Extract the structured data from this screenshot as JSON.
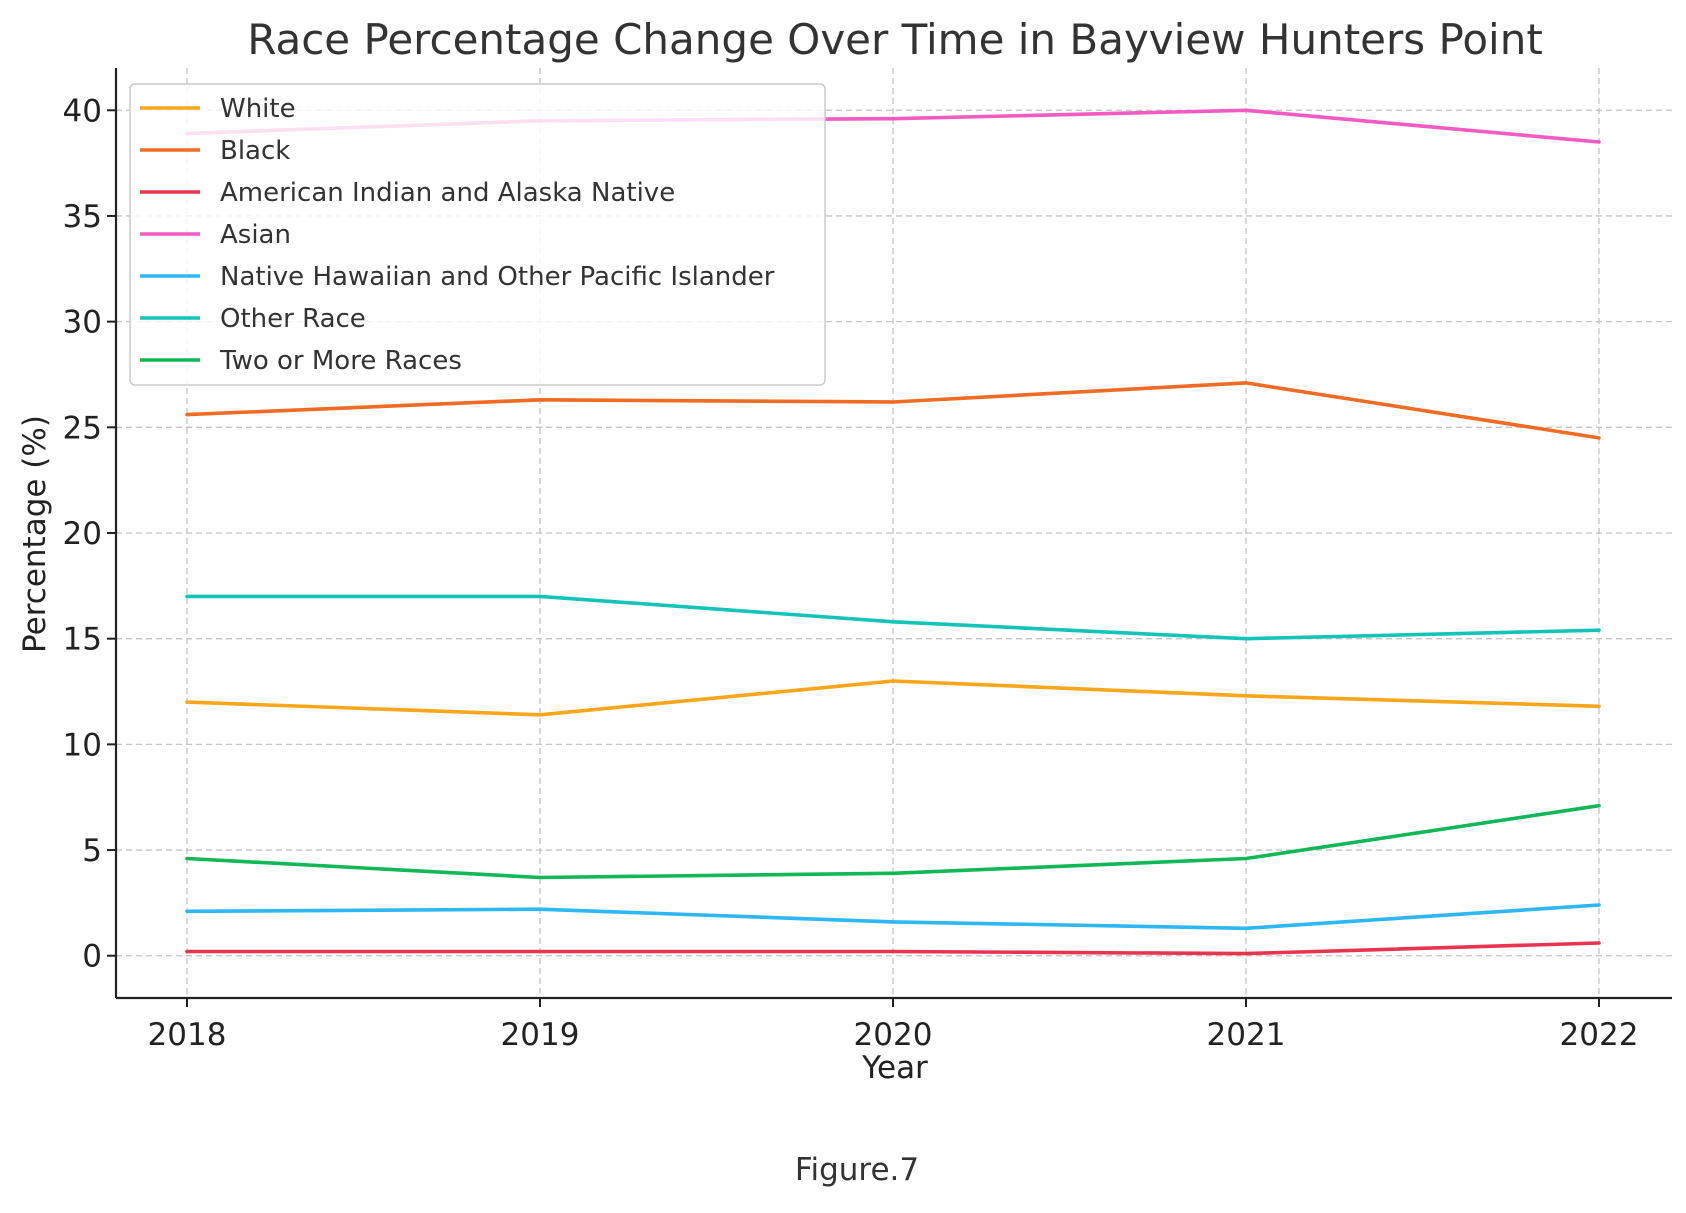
{
  "chart_data": {
    "type": "line",
    "title": "Race Percentage Change Over Time in Bayview Hunters Point",
    "xlabel": "Year",
    "ylabel": "Percentage (%)",
    "categories": [
      "2018",
      "2019",
      "2020",
      "2021",
      "2022"
    ],
    "ylim": [
      -2,
      42
    ],
    "yticks": [
      0,
      5,
      10,
      15,
      20,
      25,
      30,
      35,
      40
    ],
    "grid": true,
    "legend_position": "top-left",
    "series": [
      {
        "name": "White",
        "color": "#FAA61A",
        "values": [
          12.0,
          11.4,
          13.0,
          12.3,
          11.8
        ]
      },
      {
        "name": "Black",
        "color": "#F06B23",
        "values": [
          25.6,
          26.3,
          26.2,
          27.1,
          24.5
        ]
      },
      {
        "name": "American Indian and Alaska Native",
        "color": "#E8344E",
        "values": [
          0.2,
          0.2,
          0.2,
          0.1,
          0.6
        ]
      },
      {
        "name": "Asian",
        "color": "#F25AC4",
        "values": [
          38.9,
          39.5,
          39.6,
          40.0,
          38.5
        ]
      },
      {
        "name": "Native Hawaiian and Other Pacific Islander",
        "color": "#2DB7F5",
        "values": [
          2.1,
          2.2,
          1.6,
          1.3,
          2.4
        ]
      },
      {
        "name": "Other Race",
        "color": "#14C4B8",
        "values": [
          17.0,
          17.0,
          15.8,
          15.0,
          15.4
        ]
      },
      {
        "name": "Two or More Races",
        "color": "#12B757",
        "values": [
          4.6,
          3.7,
          3.9,
          4.6,
          7.1
        ]
      }
    ]
  },
  "caption": "Figure.7"
}
